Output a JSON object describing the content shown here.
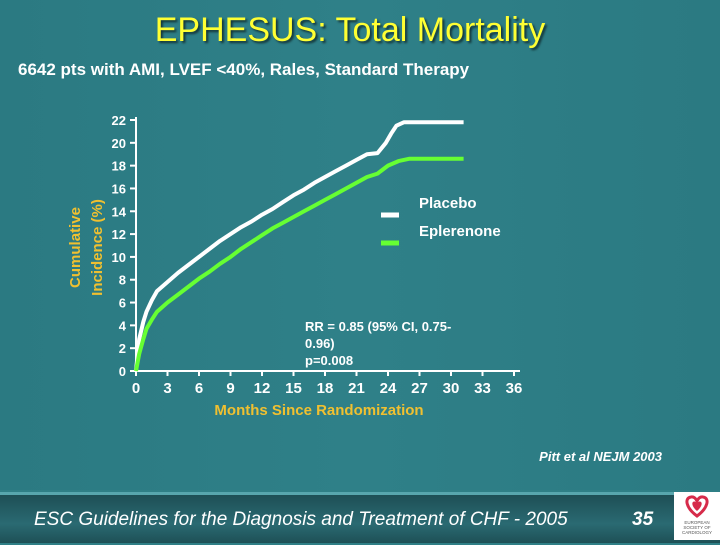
{
  "slide": {
    "title": "EPHESUS: Total Mortality",
    "subtitle": "6642 pts with AMI, LVEF <40%, Rales, Standard Therapy",
    "citation": "Pitt et al NEJM 2003",
    "footer": "ESC Guidelines for the Diagnosis and Treatment of CHF - 2005",
    "page_number": "35",
    "logo_text": [
      "EUROPEAN",
      "SOCIETY OF",
      "CARDIOLOGY"
    ]
  },
  "colors": {
    "title": "#ffff33",
    "axis_label": "#f0c030",
    "placebo": "#ffffff",
    "eplerenone": "#66ff33"
  },
  "chart_data": {
    "type": "line",
    "xlabel": "Months Since Randomization",
    "ylabel": [
      "Cumulative",
      "Incidence (%)"
    ],
    "xlim": [
      0,
      36
    ],
    "ylim": [
      0,
      22
    ],
    "xticks": [
      0,
      3,
      6,
      9,
      12,
      15,
      18,
      21,
      24,
      27,
      30,
      33,
      36
    ],
    "yticks": [
      0,
      2,
      4,
      6,
      8,
      10,
      12,
      14,
      16,
      18,
      20,
      22
    ],
    "legend_position": "right",
    "annotation": [
      "RR = 0.85 (95% CI, 0.75-",
      "0.96)",
      "p=0.008"
    ],
    "series": [
      {
        "name": "Placebo",
        "x": [
          0,
          0.3,
          0.7,
          1,
          1.5,
          2,
          3,
          4,
          5,
          6,
          7,
          8,
          9,
          10,
          11,
          12,
          13,
          14,
          15,
          16,
          17,
          18,
          19,
          20,
          21,
          22,
          23,
          23.8,
          24.3,
          24.8,
          25.5,
          26,
          28,
          30,
          31.2
        ],
        "y": [
          0,
          2.8,
          4.3,
          5.2,
          6.2,
          7,
          7.8,
          8.6,
          9.3,
          10,
          10.7,
          11.4,
          12,
          12.6,
          13.1,
          13.7,
          14.2,
          14.8,
          15.4,
          15.9,
          16.5,
          17,
          17.5,
          18,
          18.5,
          19,
          19.1,
          20,
          20.8,
          21.5,
          21.8,
          21.8,
          21.8,
          21.8,
          21.8
        ]
      },
      {
        "name": "Eplerenone",
        "x": [
          0,
          0.3,
          0.7,
          1,
          1.5,
          2,
          3,
          4,
          5,
          6,
          7,
          8,
          9,
          10,
          11,
          12,
          13,
          14,
          15,
          16,
          17,
          18,
          19,
          20,
          21,
          22,
          23,
          24,
          25,
          26,
          28,
          30,
          31.2
        ],
        "y": [
          0,
          1.5,
          2.8,
          3.7,
          4.5,
          5.2,
          6,
          6.7,
          7.4,
          8.1,
          8.7,
          9.4,
          10,
          10.7,
          11.3,
          11.9,
          12.5,
          13,
          13.5,
          14,
          14.5,
          15,
          15.5,
          16,
          16.5,
          17,
          17.3,
          18,
          18.4,
          18.6,
          18.6,
          18.6,
          18.6
        ]
      }
    ]
  }
}
